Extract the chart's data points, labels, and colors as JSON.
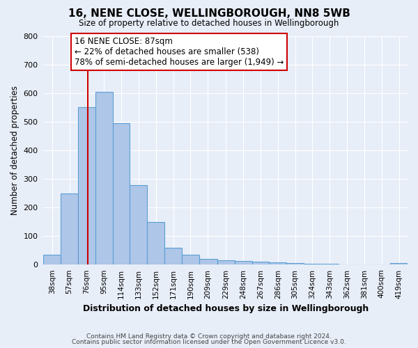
{
  "title": "16, NENE CLOSE, WELLINGBOROUGH, NN8 5WB",
  "subtitle": "Size of property relative to detached houses in Wellingborough",
  "xlabel": "Distribution of detached houses by size in Wellingborough",
  "ylabel": "Number of detached properties",
  "footer_line1": "Contains HM Land Registry data © Crown copyright and database right 2024.",
  "footer_line2": "Contains public sector information licensed under the Open Government Licence v3.0.",
  "bin_labels": [
    "38sqm",
    "57sqm",
    "76sqm",
    "95sqm",
    "114sqm",
    "133sqm",
    "152sqm",
    "171sqm",
    "190sqm",
    "209sqm",
    "229sqm",
    "248sqm",
    "267sqm",
    "286sqm",
    "305sqm",
    "324sqm",
    "343sqm",
    "362sqm",
    "381sqm",
    "400sqm",
    "419sqm"
  ],
  "bin_edges": [
    38,
    57,
    76,
    95,
    114,
    133,
    152,
    171,
    190,
    209,
    229,
    248,
    267,
    286,
    305,
    324,
    343,
    362,
    381,
    400,
    419,
    438
  ],
  "bar_heights": [
    35,
    250,
    550,
    605,
    495,
    278,
    148,
    60,
    35,
    20,
    15,
    13,
    10,
    8,
    5,
    3,
    2,
    1,
    1,
    1,
    5
  ],
  "bar_color": "#aec6e8",
  "bar_edge_color": "#5a9fd4",
  "ylim": [
    0,
    800
  ],
  "yticks": [
    0,
    100,
    200,
    300,
    400,
    500,
    600,
    700,
    800
  ],
  "property_value": 87,
  "vline_color": "#cc0000",
  "annotation_title": "16 NENE CLOSE: 87sqm",
  "annotation_line1": "← 22% of detached houses are smaller (538)",
  "annotation_line2": "78% of semi-detached houses are larger (1,949) →",
  "annotation_box_color": "#ffffff",
  "annotation_box_edge_color": "#cc0000",
  "background_color": "#e8eef8",
  "grid_color": "#ffffff",
  "tick_label_color": "#333333"
}
